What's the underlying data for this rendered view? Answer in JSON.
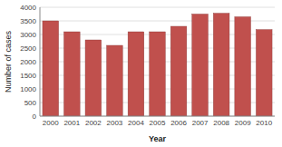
{
  "chart_data": {
    "type": "bar",
    "categories": [
      "2000",
      "2001",
      "2002",
      "2003",
      "2004",
      "2005",
      "2006",
      "2007",
      "2008",
      "2009",
      "2010"
    ],
    "values": [
      3500,
      3100,
      2800,
      2600,
      3100,
      3100,
      3300,
      3750,
      3780,
      3650,
      3180
    ],
    "color": "#c0504d",
    "xlabel": "Year",
    "ylabel": "Number of cases",
    "ylim": [
      0,
      4000
    ],
    "yticks": [
      0,
      500,
      1000,
      1500,
      2000,
      2500,
      3000,
      3500,
      4000
    ],
    "grid": true
  }
}
